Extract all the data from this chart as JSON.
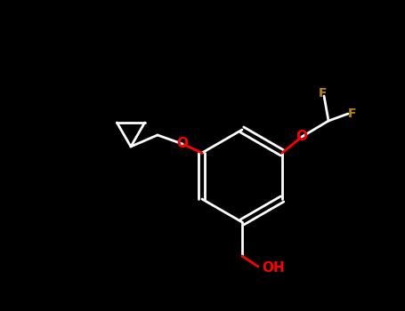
{
  "background": "#000000",
  "bond_color": "#ffffff",
  "O_color": "#ff0000",
  "F_color": "#b8860b",
  "H_color": "#ffffff",
  "lw": 2.0,
  "figsize": [
    4.55,
    3.5
  ],
  "dpi": 100,
  "atoms": {
    "O1_label": "O",
    "O2_label": "O",
    "F1_label": "F",
    "F2_label": "F",
    "OH_label": "OH"
  }
}
